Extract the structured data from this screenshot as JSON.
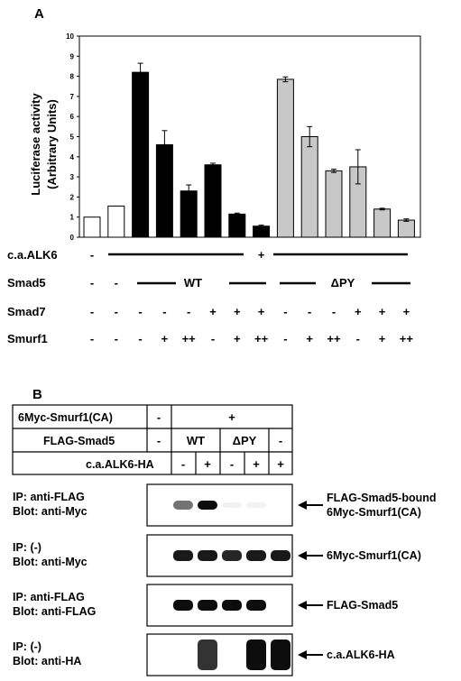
{
  "panel_a": {
    "label": "A",
    "chart_data": {
      "type": "bar",
      "ylabel_line1": "Luciferase activity",
      "ylabel_line2": "(Arbitrary Units)",
      "ylim": [
        0,
        10
      ],
      "yticks": [
        "0",
        "1",
        "2",
        "3",
        "4",
        "5",
        "6",
        "7",
        "8",
        "9",
        "10"
      ],
      "grid": false,
      "bars": [
        {
          "value": 1.0,
          "err": 0,
          "fill": "#ffffff"
        },
        {
          "value": 1.55,
          "err": 0,
          "fill": "#ffffff"
        },
        {
          "value": 8.2,
          "err": 0.45,
          "fill": "#000000"
        },
        {
          "value": 4.6,
          "err": 0.7,
          "fill": "#000000"
        },
        {
          "value": 2.3,
          "err": 0.3,
          "fill": "#000000"
        },
        {
          "value": 3.6,
          "err": 0.08,
          "fill": "#000000"
        },
        {
          "value": 1.15,
          "err": 0.05,
          "fill": "#000000"
        },
        {
          "value": 0.55,
          "err": 0.05,
          "fill": "#000000"
        },
        {
          "value": 7.85,
          "err": 0.12,
          "fill": "#c8c8c8"
        },
        {
          "value": 5.0,
          "err": 0.5,
          "fill": "#c8c8c8"
        },
        {
          "value": 3.3,
          "err": 0.08,
          "fill": "#c8c8c8"
        },
        {
          "value": 3.5,
          "err": 0.85,
          "fill": "#c8c8c8"
        },
        {
          "value": 1.4,
          "err": 0.04,
          "fill": "#c8c8c8"
        },
        {
          "value": 0.85,
          "err": 0.06,
          "fill": "#c8c8c8"
        }
      ]
    },
    "rows": {
      "alk6": {
        "name": "c.a.ALK6",
        "marks": [
          "-",
          "",
          "",
          "",
          "",
          "",
          "",
          "+",
          "",
          "",
          "",
          "",
          "",
          ""
        ]
      },
      "smad5": {
        "name": "Smad5",
        "marks": [
          "-",
          "-",
          "",
          "",
          "",
          "",
          "",
          "",
          "",
          "",
          "",
          "",
          "",
          ""
        ],
        "wt": "WT",
        "dpy": "ΔPY"
      },
      "smad7": {
        "name": "Smad7",
        "marks": [
          "-",
          "-",
          "-",
          "-",
          "-",
          "+",
          "+",
          "+",
          "-",
          "-",
          "-",
          "+",
          "+",
          "+"
        ]
      },
      "smurf1": {
        "name": "Smurf1",
        "marks": [
          "-",
          "-",
          "-",
          "+",
          "++",
          "-",
          "+",
          "++",
          "-",
          "+",
          "++",
          "-",
          "+",
          "++"
        ]
      }
    }
  },
  "panel_b": {
    "label": "B",
    "table": {
      "row1": {
        "name": "6Myc-Smurf1(CA)",
        "neg": "-",
        "pos": "+"
      },
      "row2": {
        "name": "FLAG-Smad5",
        "neg": "-",
        "wt": "WT",
        "dpy": "ΔPY",
        "neg2": "-"
      },
      "row3": {
        "name": "c.a.ALK6-HA",
        "cells": [
          "-",
          "+",
          "-",
          "+",
          "+"
        ]
      }
    },
    "blots": [
      {
        "ip": "IP: anti-FLAG",
        "blot": "Blot: anti-Myc",
        "target_line1": "FLAG-Smad5-bound",
        "target_line2": "6Myc-Smurf1(CA)",
        "intensities": [
          0,
          0.55,
          0.95,
          0.05,
          0.05,
          0
        ]
      },
      {
        "ip": "IP: (-)",
        "blot": "Blot: anti-Myc",
        "target_line1": "6Myc-Smurf1(CA)",
        "target_line2": "",
        "intensities": [
          0,
          0.9,
          0.9,
          0.85,
          0.9,
          0.9
        ]
      },
      {
        "ip": "IP: anti-FLAG",
        "blot": "Blot: anti-FLAG",
        "target_line1": "FLAG-Smad5",
        "target_line2": "",
        "intensities": [
          0,
          0.95,
          0.95,
          0.95,
          0.95,
          0
        ]
      },
      {
        "ip": "IP: (-)",
        "blot": "Blot: anti-HA",
        "target_line1": "c.a.ALK6-HA",
        "target_line2": "",
        "intensities": [
          0,
          0,
          0.8,
          0,
          0.95,
          0.95
        ]
      }
    ]
  }
}
